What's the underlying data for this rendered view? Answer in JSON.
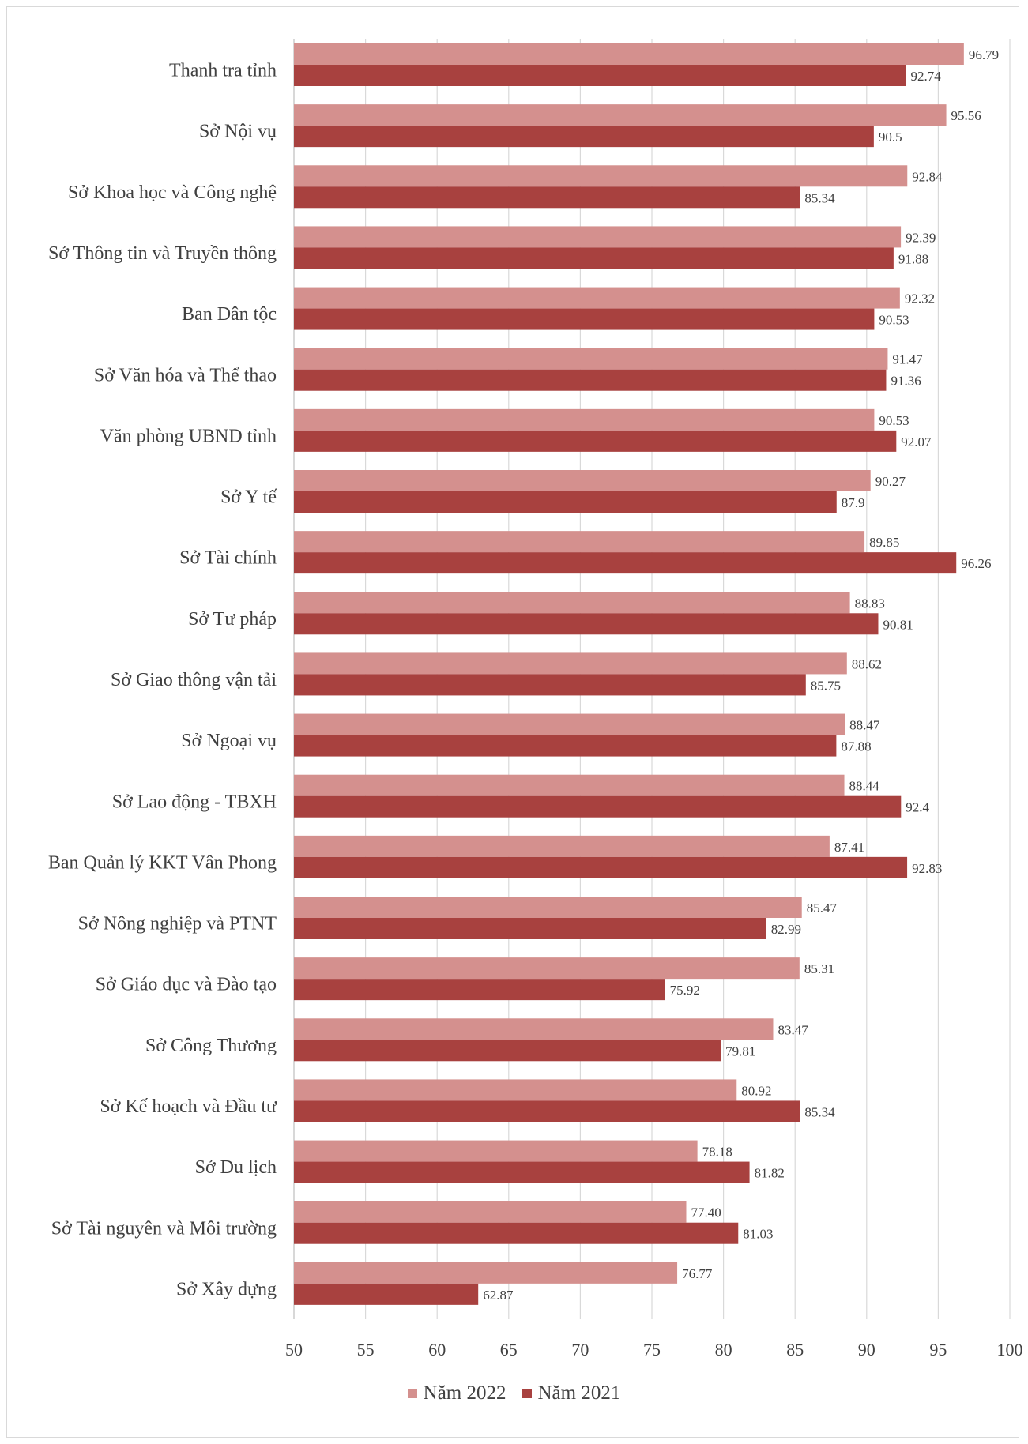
{
  "chart_data": {
    "type": "bar",
    "orientation": "horizontal",
    "title": "",
    "xlabel": "",
    "ylabel": "",
    "xlim": [
      50,
      100
    ],
    "xticks": [
      50,
      55,
      60,
      65,
      70,
      75,
      80,
      85,
      90,
      95,
      100
    ],
    "grid": "vertical",
    "legend_position": "bottom",
    "categories": [
      "Thanh tra tỉnh",
      "Sở Nội vụ",
      "Sở Khoa học và Công nghệ",
      "Sở Thông tin và Truyền thông",
      "Ban Dân tộc",
      "Sở Văn hóa và Thể thao",
      "Văn phòng UBND tỉnh",
      "Sở Y tế",
      "Sở Tài chính",
      "Sở Tư pháp",
      "Sở Giao thông vận tải",
      "Sở Ngoại vụ",
      "Sở Lao động - TBXH",
      "Ban Quản lý KKT Vân Phong",
      "Sở Nông nghiệp và PTNT",
      "Sở Giáo dục và Đào tạo",
      "Sở Công Thương",
      "Sở Kế hoạch và Đầu tư",
      "Sở Du lịch",
      "Sở Tài nguyên và Môi trường",
      "Sở Xây dựng"
    ],
    "series": [
      {
        "name": "Năm 2022",
        "color": "#d4908e",
        "values": [
          96.79,
          95.56,
          92.84,
          92.39,
          92.32,
          91.47,
          90.53,
          90.27,
          89.85,
          88.83,
          88.62,
          88.47,
          88.44,
          87.41,
          85.47,
          85.31,
          83.47,
          80.92,
          78.18,
          77.4,
          76.77
        ],
        "labels": [
          "96.79",
          "95.56",
          "92.84",
          "92.39",
          "92.32",
          "91.47",
          "90.53",
          "90.27",
          "89.85",
          "88.83",
          "88.62",
          "88.47",
          "88.44",
          "87.41",
          "85.47",
          "85.31",
          "83.47",
          "80.92",
          "78.18",
          "77.40",
          "76.77"
        ]
      },
      {
        "name": "Năm 2021",
        "color": "#a8413f",
        "values": [
          92.74,
          90.5,
          85.34,
          91.88,
          90.53,
          91.36,
          92.07,
          87.9,
          96.26,
          90.81,
          85.75,
          87.88,
          92.4,
          92.83,
          82.99,
          75.92,
          79.81,
          85.34,
          81.82,
          81.03,
          62.87
        ],
        "labels": [
          "92.74",
          "90.5",
          "85.34",
          "91.88",
          "90.53",
          "91.36",
          "92.07",
          "87.9",
          "96.26",
          "90.81",
          "85.75",
          "87.88",
          "92.4",
          "92.83",
          "82.99",
          "75.92",
          "79.81",
          "85.34",
          "81.82",
          "81.03",
          "62.87"
        ]
      }
    ]
  },
  "legend": {
    "items": [
      {
        "label": "Năm 2022",
        "color": "#d4908e"
      },
      {
        "label": "Năm 2021",
        "color": "#a8413f"
      }
    ]
  }
}
